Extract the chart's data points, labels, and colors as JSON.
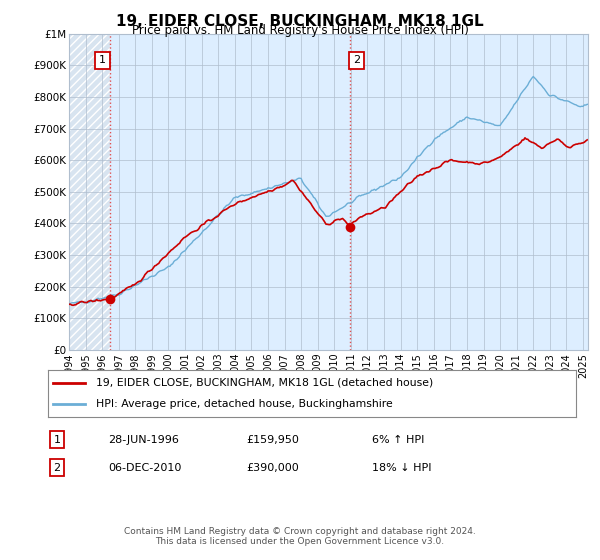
{
  "title": "19, EIDER CLOSE, BUCKINGHAM, MK18 1GL",
  "subtitle": "Price paid vs. HM Land Registry's House Price Index (HPI)",
  "footer": "Contains HM Land Registry data © Crown copyright and database right 2024.\nThis data is licensed under the Open Government Licence v3.0.",
  "legend_line1": "19, EIDER CLOSE, BUCKINGHAM, MK18 1GL (detached house)",
  "legend_line2": "HPI: Average price, detached house, Buckinghamshire",
  "table_rows": [
    {
      "num": "1",
      "date": "28-JUN-1996",
      "price": "£159,950",
      "hpi": "6% ↑ HPI"
    },
    {
      "num": "2",
      "date": "06-DEC-2010",
      "price": "£390,000",
      "hpi": "18% ↓ HPI"
    }
  ],
  "sale1_year": 1996.5,
  "sale1_price": 159950,
  "sale2_year": 2010.92,
  "sale2_price": 390000,
  "ylim": [
    0,
    1000000
  ],
  "xlim_start": 1994.0,
  "xlim_end": 2025.3,
  "yticks": [
    0,
    100000,
    200000,
    300000,
    400000,
    500000,
    600000,
    700000,
    800000,
    900000,
    1000000
  ],
  "ytick_labels": [
    "£0",
    "£100K",
    "£200K",
    "£300K",
    "£400K",
    "£500K",
    "£600K",
    "£700K",
    "£800K",
    "£900K",
    "£1M"
  ],
  "xticks": [
    1994,
    1995,
    1996,
    1997,
    1998,
    1999,
    2000,
    2001,
    2002,
    2003,
    2004,
    2005,
    2006,
    2007,
    2008,
    2009,
    2010,
    2011,
    2012,
    2013,
    2014,
    2015,
    2016,
    2017,
    2018,
    2019,
    2020,
    2021,
    2022,
    2023,
    2024,
    2025
  ],
  "hpi_color": "#6baed6",
  "sale_color": "#cc0000",
  "bg_hatch_color": "#d8e4f0",
  "bg_plain_color": "#ddeeff",
  "grid_color": "#b0bece",
  "dashed_line_color": "#e05050",
  "hatch_bg_color": "#c8d8ec"
}
